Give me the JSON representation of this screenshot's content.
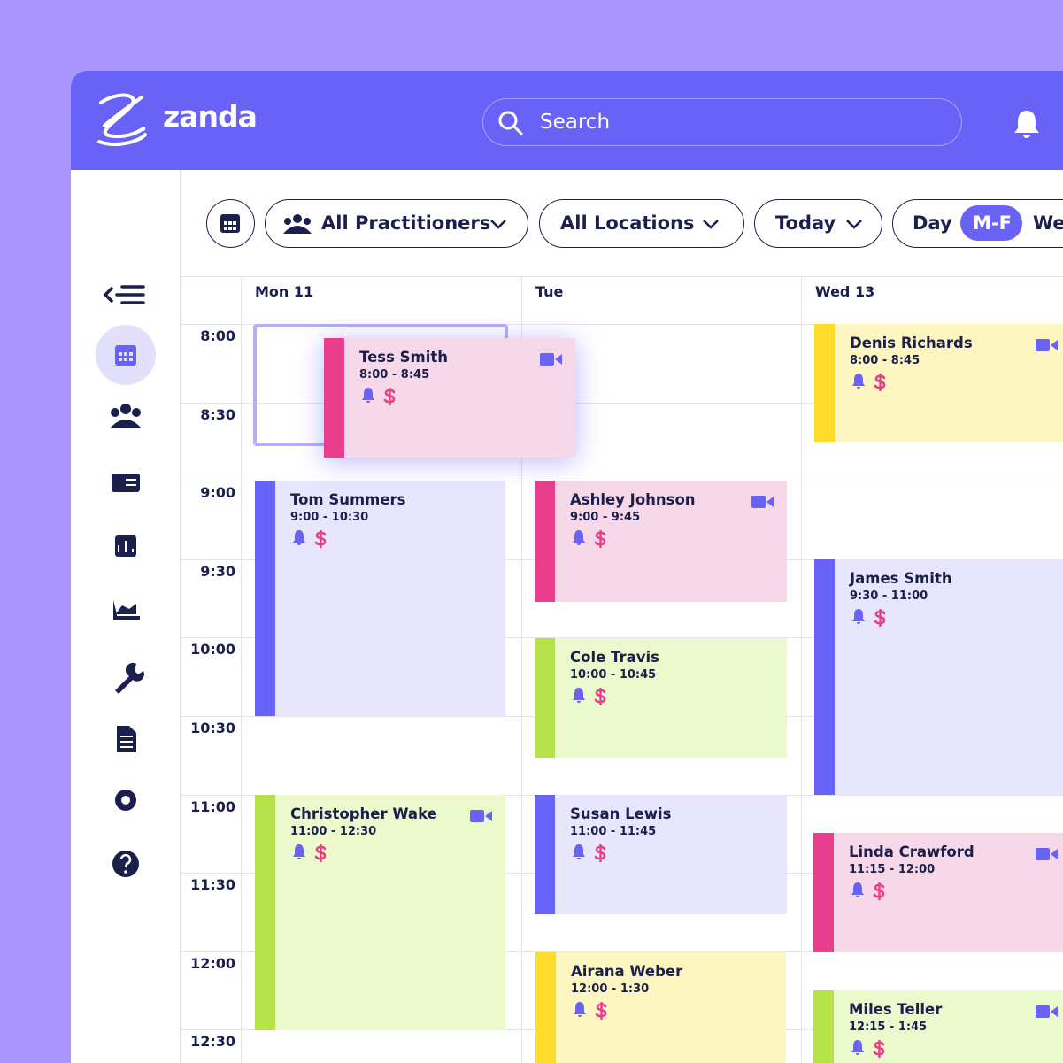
{
  "header": {
    "logo": "zanda",
    "search": "Search"
  },
  "toolbar": {
    "filters": [
      "All Practitioners",
      "All Locations",
      "Today"
    ],
    "views": [
      "Day",
      "M-F",
      "We"
    ]
  },
  "calendar": {
    "times": [
      "8:00",
      "8:30",
      "9:00",
      "9:30",
      "10:00",
      "10:30",
      "11:00",
      "11:30",
      "12:00",
      "12:30"
    ],
    "columns": [
      {
        "day": "Mon 11",
        "events": [
          {
            "name": "Tess Smith",
            "time": "8:00 - 8:45"
          },
          {
            "name": "Tom Summers",
            "time": "9:00 - 10:30"
          },
          {
            "name": "Christopher Wake",
            "time": "11:00 - 12:30"
          }
        ]
      },
      {
        "day": "Tue",
        "events": [
          {
            "name": "Ashley Johnson",
            "time": "9:00 - 9:45"
          },
          {
            "name": "Cole Travis",
            "time": "10:00 - 10:45"
          },
          {
            "name": "Susan Lewis",
            "time": "11:00 - 11:45"
          },
          {
            "name": "Airana Weber",
            "time": "12:00 - 1:30"
          }
        ]
      },
      {
        "day": "Wed 13",
        "events": [
          {
            "name": "Denis Richards",
            "time": "8:00 - 8:45"
          },
          {
            "name": "James Smith",
            "time": "9:30 - 11:00"
          },
          {
            "name": "Linda Crawford",
            "time": "11:15 - 12:00"
          },
          {
            "name": "Miles Teller",
            "time": "12:15 - 1:45"
          }
        ]
      }
    ]
  }
}
